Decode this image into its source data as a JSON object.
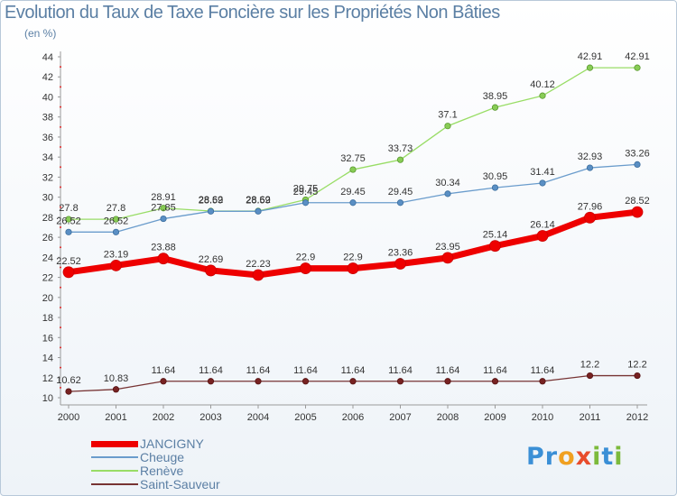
{
  "title": "Evolution du Taux de Taxe Foncière sur les Propriétés Non Bâties",
  "subtitle": "(en %)",
  "brand": {
    "text": "Proxiti",
    "letters": [
      {
        "ch": "P",
        "color": "#3a8fd6"
      },
      {
        "ch": "r",
        "color": "#3a8fd6"
      },
      {
        "ch": "o",
        "color": "#f0a020"
      },
      {
        "ch": "x",
        "color": "#e84c2c"
      },
      {
        "ch": "i",
        "color": "#7cba3c"
      },
      {
        "ch": "t",
        "color": "#3a8fd6"
      },
      {
        "ch": "i",
        "color": "#7cba3c"
      }
    ]
  },
  "chart_data": {
    "type": "line",
    "title": "Evolution du Taux de Taxe Foncière sur les Propriétés Non Bâties",
    "ylabel": "(en %)",
    "xlabel": "",
    "categories": [
      "2000",
      "2001",
      "2002",
      "2003",
      "2004",
      "2005",
      "2006",
      "2007",
      "2008",
      "2009",
      "2010",
      "2011",
      "2012"
    ],
    "ylim": [
      10,
      44
    ],
    "yticks": [
      10,
      12,
      14,
      16,
      18,
      20,
      22,
      24,
      26,
      28,
      30,
      32,
      34,
      36,
      38,
      40,
      42,
      44
    ],
    "grid": false,
    "legend_position": "bottom-left",
    "series": [
      {
        "name": "JANCIGNY",
        "color": "#ee0000",
        "values": [
          22.52,
          23.19,
          23.88,
          22.69,
          22.23,
          22.9,
          22.9,
          23.36,
          23.95,
          25.14,
          26.14,
          27.96,
          28.52
        ]
      },
      {
        "name": "Cheuge",
        "color": "#6a9ccc",
        "values": [
          26.52,
          26.52,
          27.85,
          28.59,
          28.59,
          29.45,
          29.45,
          29.45,
          30.34,
          30.95,
          31.41,
          32.93,
          33.26
        ]
      },
      {
        "name": "Renève",
        "color": "#99dd66",
        "values": [
          27.8,
          27.8,
          28.91,
          28.62,
          28.62,
          29.75,
          32.75,
          33.73,
          37.1,
          38.95,
          40.12,
          42.91,
          42.91
        ]
      },
      {
        "name": "Saint-Sauveur",
        "color": "#773333",
        "values": [
          10.62,
          10.83,
          11.64,
          11.64,
          11.64,
          11.64,
          11.64,
          11.64,
          11.64,
          11.64,
          11.64,
          12.2,
          12.2
        ]
      }
    ]
  }
}
